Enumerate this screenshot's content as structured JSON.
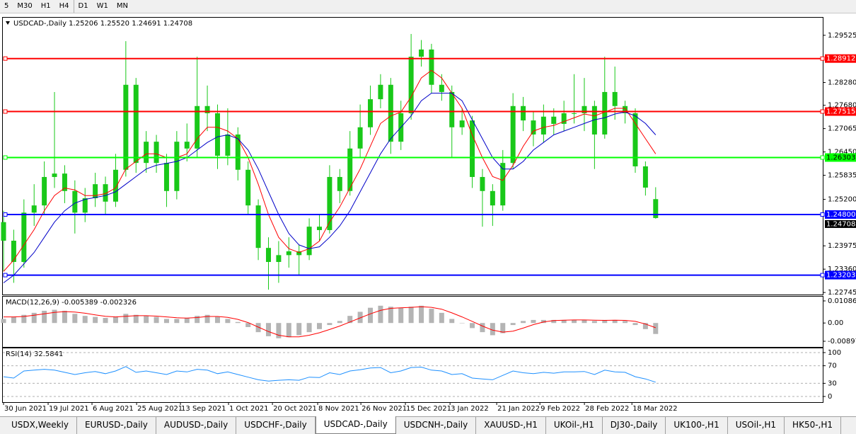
{
  "toolbar": [
    "5",
    "M30",
    "H1",
    "H4",
    "D1",
    "W1",
    "MN"
  ],
  "chart_data": [
    {
      "type": "candlestick",
      "title": "USDCAD-,Daily  1.25206 1.25520 1.24691 1.24708",
      "open": [
        1.246,
        1.2411,
        1.2355,
        1.2485,
        1.2504,
        1.2579,
        1.2588,
        1.2542,
        1.2485,
        1.2523,
        1.256,
        1.2514,
        1.2598,
        1.2822,
        1.2616,
        1.2672,
        1.2616,
        1.2542,
        1.2672,
        1.2654,
        1.2766,
        1.2747,
        1.2635,
        1.2691,
        1.2598,
        1.2504,
        1.2392,
        1.2355,
        1.2373,
        1.2383,
        1.2373,
        1.2448,
        1.2439,
        1.2579,
        1.2542,
        1.2654,
        1.271,
        1.2784,
        1.2822,
        1.2672,
        1.2747,
        1.2896,
        1.2915,
        1.2822,
        1.2803,
        1.271,
        1.2728,
        1.2579,
        1.2542,
        1.2504,
        1.2616,
        1.2766,
        1.2728,
        1.2691,
        1.2738,
        1.2719,
        1.2747,
        1.2747,
        1.2766,
        1.2691,
        1.2803,
        1.2766,
        1.2747,
        1.2607,
        1.25206
      ],
      "high": [
        1.249,
        1.244,
        1.252,
        1.256,
        1.262,
        1.2803,
        1.261,
        1.257,
        1.255,
        1.259,
        1.258,
        1.264,
        1.2937,
        1.284,
        1.27,
        1.269,
        1.264,
        1.27,
        1.272,
        1.2896,
        1.282,
        1.277,
        1.276,
        1.271,
        1.262,
        1.252,
        1.242,
        1.241,
        1.242,
        1.24,
        1.247,
        1.248,
        1.261,
        1.26,
        1.27,
        1.277,
        1.282,
        1.285,
        1.284,
        1.278,
        1.2956,
        1.294,
        1.293,
        1.285,
        1.282,
        1.276,
        1.274,
        1.26,
        1.256,
        1.265,
        1.28,
        1.279,
        1.275,
        1.277,
        1.276,
        1.278,
        1.285,
        1.284,
        1.278,
        1.2896,
        1.287,
        1.278,
        1.276,
        1.262,
        1.2552
      ],
      "low": [
        1.233,
        1.23,
        1.234,
        1.245,
        1.248,
        1.255,
        1.251,
        1.243,
        1.246,
        1.25,
        1.248,
        1.25,
        1.258,
        1.259,
        1.259,
        1.259,
        1.25,
        1.252,
        1.262,
        1.263,
        1.27,
        1.26,
        1.261,
        1.257,
        1.248,
        1.236,
        1.2282,
        1.23,
        1.234,
        1.232,
        1.236,
        1.241,
        1.243,
        1.251,
        1.253,
        1.263,
        1.269,
        1.276,
        1.264,
        1.265,
        1.273,
        1.287,
        1.28,
        1.278,
        1.263,
        1.269,
        1.255,
        1.2448,
        1.245,
        1.249,
        1.26,
        1.27,
        1.266,
        1.267,
        1.269,
        1.27,
        1.272,
        1.27,
        1.26,
        1.268,
        1.273,
        1.272,
        1.259,
        1.253,
        1.24691
      ],
      "close": [
        1.2411,
        1.2355,
        1.2485,
        1.2504,
        1.2579,
        1.2588,
        1.2542,
        1.2485,
        1.2523,
        1.256,
        1.2514,
        1.2598,
        1.2822,
        1.2616,
        1.2672,
        1.2616,
        1.2542,
        1.2672,
        1.2654,
        1.2766,
        1.2747,
        1.2635,
        1.2691,
        1.2598,
        1.2504,
        1.2392,
        1.2355,
        1.2373,
        1.2383,
        1.2373,
        1.2448,
        1.2439,
        1.2579,
        1.2542,
        1.2654,
        1.271,
        1.2784,
        1.2822,
        1.2672,
        1.2747,
        1.2896,
        1.2915,
        1.2822,
        1.2803,
        1.271,
        1.2728,
        1.2579,
        1.2542,
        1.2504,
        1.2616,
        1.2766,
        1.2728,
        1.2691,
        1.2738,
        1.2719,
        1.2747,
        1.2747,
        1.2766,
        1.2691,
        1.2803,
        1.2766,
        1.2747,
        1.2607,
        1.2551,
        1.24708
      ],
      "candle_color": "#19c819",
      "series": [
        {
          "color": "#ff0000",
          "values": [
            1.233,
            1.236,
            1.24,
            1.244,
            1.249,
            1.253,
            1.255,
            1.2545,
            1.253,
            1.253,
            1.2535,
            1.255,
            1.26,
            1.262,
            1.264,
            1.264,
            1.263,
            1.263,
            1.264,
            1.268,
            1.271,
            1.271,
            1.27,
            1.268,
            1.263,
            1.256,
            1.248,
            1.242,
            1.239,
            1.238,
            1.239,
            1.241,
            1.246,
            1.25,
            1.255,
            1.26,
            1.266,
            1.272,
            1.274,
            1.275,
            1.279,
            1.284,
            1.286,
            1.284,
            1.28,
            1.276,
            1.269,
            1.263,
            1.258,
            1.257,
            1.261,
            1.266,
            1.27,
            1.271,
            1.2715,
            1.2725,
            1.2735,
            1.2745,
            1.274,
            1.275,
            1.276,
            1.276,
            1.272,
            1.268,
            1.264
          ]
        },
        {
          "color": "#0000c8",
          "values": [
            1.23,
            1.232,
            1.235,
            1.238,
            1.242,
            1.246,
            1.249,
            1.251,
            1.252,
            1.2525,
            1.253,
            1.254,
            1.256,
            1.258,
            1.26,
            1.261,
            1.2615,
            1.262,
            1.263,
            1.265,
            1.267,
            1.2685,
            1.269,
            1.268,
            1.265,
            1.26,
            1.254,
            1.248,
            1.243,
            1.24,
            1.239,
            1.2395,
            1.242,
            1.245,
            1.249,
            1.254,
            1.259,
            1.264,
            1.268,
            1.271,
            1.274,
            1.278,
            1.28,
            1.28,
            1.28,
            1.278,
            1.273,
            1.268,
            1.263,
            1.26,
            1.26,
            1.262,
            1.265,
            1.267,
            1.269,
            1.27,
            1.271,
            1.272,
            1.273,
            1.2735,
            1.2745,
            1.275,
            1.274,
            1.272,
            1.269
          ]
        }
      ],
      "levels": [
        {
          "value": 1.28912,
          "color": "#ff0000"
        },
        {
          "value": 1.27515,
          "color": "#ff0000"
        },
        {
          "value": 1.26303,
          "color": "#00ff00"
        },
        {
          "value": 1.248,
          "label": "1.24800",
          "color": "#0000ff"
        },
        {
          "value": 1.23203,
          "color": "#0000ff"
        }
      ],
      "last_price": 1.24708,
      "ylim": [
        1.2271,
        1.2997
      ],
      "yticks": [
        1.29525,
        {
          "value": 1.2828,
          "label": "1.28280"
        },
        {
          "value": 1.2768,
          "label": "1.27680"
        },
        1.27065,
        {
          "value": 1.2645,
          "label": "1.26450"
        },
        1.25835,
        {
          "value": 1.252,
          "label": "1.25200"
        },
        1.23975,
        {
          "value": 1.2336,
          "label": "1.23360"
        },
        1.22745
      ],
      "xlim": [
        -0.14,
        80.4
      ],
      "xticks": [
        {
          "value": 0,
          "label": "30 Jun 2021"
        },
        {
          "value": 4.375,
          "label": "19 Jul 2021"
        },
        {
          "value": 8.68,
          "label": "6 Aug 2021"
        },
        {
          "value": 13.06,
          "label": "25 Aug 2021"
        },
        {
          "value": 17.36,
          "label": "13 Sep 2021"
        },
        {
          "value": 22.08,
          "label": "1 Oct 2021"
        },
        {
          "value": 26.39,
          "label": "20 Oct 2021"
        },
        {
          "value": 30.83,
          "label": "8 Nov 2021"
        },
        {
          "value": 35.07,
          "label": "26 Nov 2021"
        },
        {
          "value": 39.44,
          "label": "15 Dec 2021"
        },
        {
          "value": 43.82,
          "label": "3 Jan 2022"
        },
        {
          "value": 48.4,
          "label": "21 Jan 2022"
        },
        {
          "value": 52.64,
          "label": "9 Feb 2022"
        },
        {
          "value": 57.01,
          "label": "28 Feb 2022"
        },
        {
          "value": 61.67,
          "label": "18 Mar 2022"
        }
      ]
    },
    {
      "type": "macd",
      "title": "MACD(12,26,9) -0.005389 -0.002326",
      "histogram": [
        0.002,
        0.003,
        0.004,
        0.005,
        0.006,
        0.0065,
        0.006,
        0.0045,
        0.0035,
        0.003,
        0.0025,
        0.003,
        0.0045,
        0.004,
        0.0035,
        0.003,
        0.002,
        0.002,
        0.0025,
        0.0035,
        0.004,
        0.003,
        0.002,
        0.0005,
        -0.002,
        -0.0045,
        -0.0065,
        -0.0075,
        -0.007,
        -0.006,
        -0.0045,
        -0.003,
        -0.001,
        0.001,
        0.0035,
        0.0055,
        0.0075,
        0.0085,
        0.008,
        0.0075,
        0.008,
        0.0085,
        0.007,
        0.005,
        0.002,
        0.0,
        -0.0025,
        -0.0045,
        -0.006,
        -0.005,
        -0.001,
        0.001,
        0.0015,
        0.0015,
        0.0015,
        0.0015,
        0.0015,
        0.0015,
        0.001,
        0.0015,
        0.0015,
        0.001,
        -0.001,
        -0.003,
        -0.005389
      ],
      "signal": [
        0.003,
        0.003,
        0.0032,
        0.0038,
        0.0045,
        0.0052,
        0.0056,
        0.0054,
        0.0048,
        0.004,
        0.0033,
        0.003,
        0.0033,
        0.0036,
        0.0036,
        0.0034,
        0.003,
        0.0026,
        0.0024,
        0.0027,
        0.0032,
        0.0032,
        0.0028,
        0.0018,
        0.0002,
        -0.002,
        -0.0042,
        -0.006,
        -0.0068,
        -0.0068,
        -0.006,
        -0.0048,
        -0.0032,
        -0.0015,
        0.0005,
        0.0025,
        0.0045,
        0.0062,
        0.0072,
        0.0075,
        0.0077,
        0.008,
        0.0077,
        0.0068,
        0.005,
        0.003,
        0.0008,
        -0.0015,
        -0.0035,
        -0.0045,
        -0.004,
        -0.0025,
        -0.0008,
        0.0005,
        0.0012,
        0.0014,
        0.0015,
        0.0015,
        0.0014,
        0.0013,
        0.0014,
        0.0013,
        0.0008,
        -0.0005,
        -0.002326
      ],
      "hist_color": "#b4b4b4",
      "signal_color": "#ff0000",
      "ylim": [
        -0.01176,
        0.01261
      ],
      "yticks": [
        0.010869,
        {
          "value": 0,
          "label": "0.00"
        },
        -0.008974
      ]
    },
    {
      "type": "line",
      "title": "RSI(14) 32.5841",
      "values": [
        45,
        42,
        58,
        60,
        62,
        60,
        55,
        50,
        54,
        57,
        52,
        58,
        68,
        55,
        58,
        54,
        50,
        58,
        56,
        62,
        60,
        52,
        56,
        50,
        44,
        38,
        35,
        37,
        38,
        37,
        44,
        43,
        54,
        50,
        58,
        61,
        65,
        66,
        54,
        58,
        66,
        67,
        60,
        58,
        50,
        52,
        42,
        40,
        38,
        48,
        58,
        54,
        52,
        55,
        53,
        56,
        56,
        57,
        50,
        60,
        56,
        55,
        45,
        40,
        32.5841
      ],
      "color": "#1e90ff",
      "grid": true,
      "ylim": [
        -12.9,
        109.7
      ],
      "yticks": [
        100,
        70,
        30,
        0
      ]
    }
  ],
  "tabs": [
    "USDX,Weekly",
    "EURUSD-,Daily",
    "AUDUSD-,Daily",
    "USDCHF-,Daily",
    "USDCAD-,Daily",
    "USDCNH-,Daily",
    "XAUUSD-,H1",
    "UKOil-,H1",
    "DJ30-,Daily",
    "UK100-,H1",
    "USOil-,H1",
    "HK50-,H1"
  ]
}
